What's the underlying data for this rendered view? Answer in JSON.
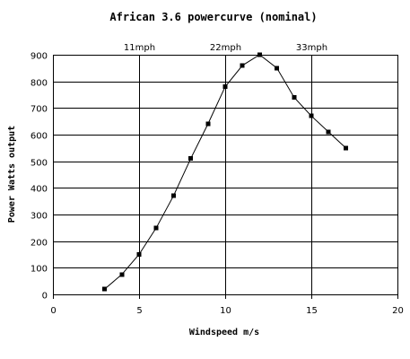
{
  "chart_data": {
    "type": "line",
    "title": "African 3.6 powercurve (nominal)",
    "xlabel": "Windspeed m/s",
    "ylabel": "Power Watts output",
    "xlim": [
      0,
      20
    ],
    "ylim": [
      0,
      900
    ],
    "x_ticks": [
      "0",
      "5",
      "10",
      "15",
      "20"
    ],
    "y_ticks": [
      "0",
      "100",
      "200",
      "300",
      "400",
      "500",
      "600",
      "700",
      "800",
      "900"
    ],
    "grid": "horizontal",
    "annotations": [
      {
        "text": "11mph",
        "x": 5
      },
      {
        "text": "22mph",
        "x": 10
      },
      {
        "text": "33mph",
        "x": 15
      }
    ],
    "series": [
      {
        "x": [
          3,
          4,
          5,
          6,
          7,
          8,
          9,
          10,
          11,
          12,
          13,
          14,
          15,
          16,
          17
        ],
        "values": [
          20,
          75,
          150,
          250,
          370,
          510,
          640,
          780,
          860,
          900,
          850,
          740,
          670,
          610,
          550
        ]
      }
    ]
  }
}
